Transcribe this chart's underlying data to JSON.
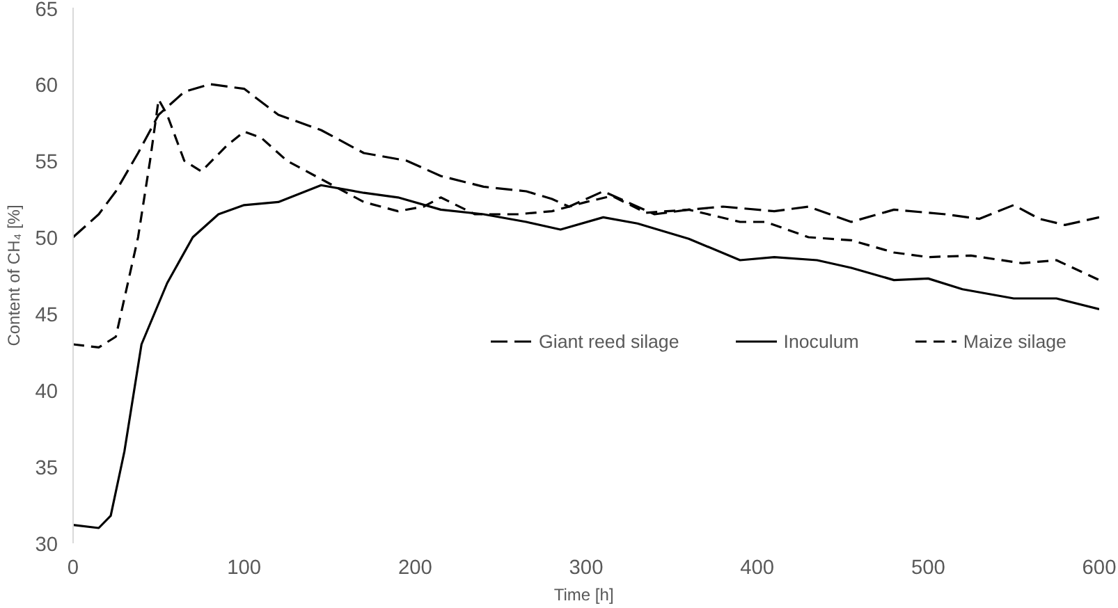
{
  "chart_data": {
    "type": "line",
    "xlabel": "Time  [h]",
    "ylabel": "Content of CH₄ [%]",
    "xlim": [
      0,
      600
    ],
    "ylim": [
      30,
      65
    ],
    "xticks": [
      0,
      100,
      200,
      300,
      400,
      500,
      600
    ],
    "yticks": [
      30,
      35,
      40,
      45,
      50,
      55,
      60,
      65
    ],
    "grid": false,
    "legend": "right",
    "marker": "none",
    "series": [
      {
        "name": "Giant reed silage",
        "color": "#000000",
        "line_style": "dashed",
        "x": [
          0,
          15,
          25,
          38,
          50,
          65,
          80,
          100,
          120,
          145,
          170,
          195,
          215,
          240,
          265,
          280,
          290,
          310,
          340,
          360,
          380,
          410,
          430,
          455,
          480,
          510,
          530,
          550,
          565,
          580,
          600
        ],
        "values": [
          50,
          51.5,
          53,
          55.5,
          58,
          59.5,
          60,
          59.7,
          58,
          57,
          55.5,
          55,
          54,
          53.3,
          53,
          52.5,
          52,
          53,
          51.5,
          51.8,
          52,
          51.7,
          52,
          51,
          51.8,
          51.5,
          51.2,
          52.1,
          51.2,
          50.8,
          51.3
        ]
      },
      {
        "name": "Inoculum",
        "color": "#000000",
        "line_style": "solid",
        "x": [
          0,
          15,
          22,
          30,
          40,
          55,
          70,
          85,
          100,
          120,
          145,
          170,
          190,
          215,
          240,
          265,
          285,
          310,
          330,
          360,
          390,
          410,
          435,
          455,
          480,
          500,
          520,
          550,
          575,
          600
        ],
        "values": [
          31.2,
          31,
          31.8,
          36,
          43,
          47,
          50,
          51.5,
          52.1,
          52.3,
          53.4,
          52.9,
          52.6,
          51.8,
          51.5,
          51,
          50.5,
          51.3,
          50.9,
          49.9,
          48.5,
          48.7,
          48.5,
          48,
          47.2,
          47.3,
          46.6,
          46,
          46,
          45.3
        ]
      },
      {
        "name": "Maize silage",
        "color": "#000000",
        "line_style": "dotted",
        "x": [
          0,
          15,
          25,
          38,
          45,
          50,
          55,
          65,
          75,
          90,
          100,
          110,
          125,
          150,
          170,
          190,
          205,
          215,
          235,
          260,
          280,
          300,
          315,
          335,
          360,
          390,
          405,
          430,
          455,
          480,
          500,
          525,
          555,
          575,
          600
        ],
        "values": [
          43,
          42.8,
          43.5,
          50,
          55,
          59,
          58,
          55,
          54.3,
          56,
          56.9,
          56.5,
          55,
          53.5,
          52.3,
          51.7,
          52,
          52.6,
          51.5,
          51.5,
          51.7,
          52.3,
          52.7,
          51.6,
          51.8,
          51,
          51,
          50,
          49.8,
          49,
          48.7,
          48.8,
          48.3,
          48.5,
          47.2
        ]
      }
    ]
  }
}
